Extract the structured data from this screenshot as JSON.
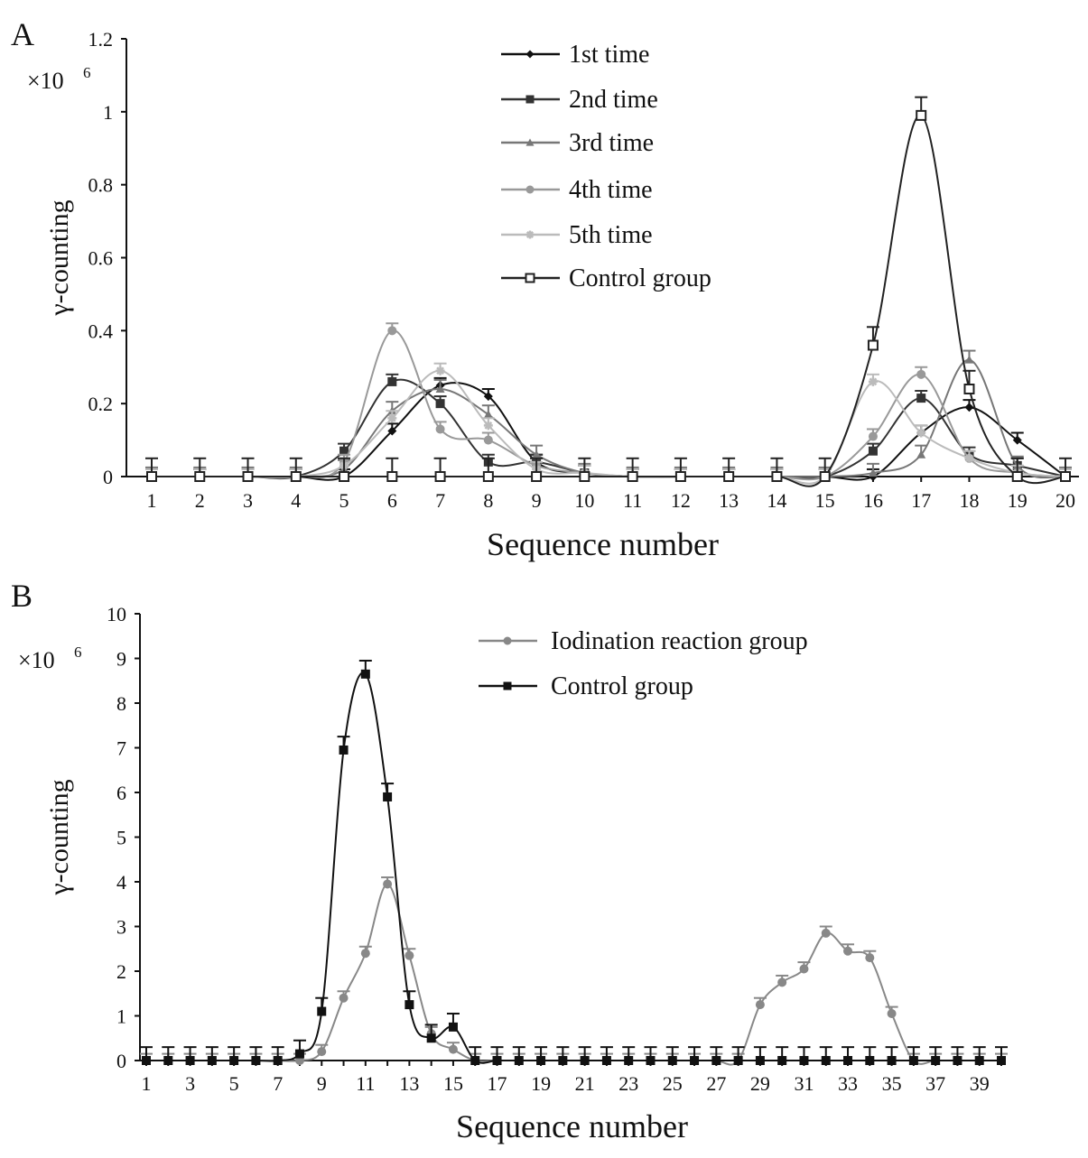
{
  "chart_data": [
    {
      "panel": "A",
      "type": "line",
      "multiplier_label": "×10",
      "multiplier_exp": "6",
      "xlabel": "Sequence number",
      "ylabel": "γ-counting",
      "ylim": [
        0,
        1.2
      ],
      "yticks": [
        0,
        0.2,
        0.4,
        0.6,
        0.8,
        1,
        1.2
      ],
      "ytick_labels": [
        "0",
        "0.2",
        "0.4",
        "0.6",
        "0.8",
        "1",
        "1.2"
      ],
      "x": [
        1,
        2,
        3,
        4,
        5,
        6,
        7,
        8,
        9,
        10,
        11,
        12,
        13,
        14,
        15,
        16,
        17,
        18,
        19,
        20
      ],
      "xtick_labels": [
        "1",
        "2",
        "3",
        "4",
        "5",
        "6",
        "7",
        "8",
        "9",
        "10",
        "11",
        "12",
        "13",
        "14",
        "15",
        "16",
        "17",
        "18",
        "19",
        "20"
      ],
      "legend_position": "top-center",
      "series": [
        {
          "name": "1st time",
          "marker": "diamond",
          "color": "#111111",
          "error": 0.02,
          "values": [
            0,
            0,
            0,
            0,
            0,
            0.125,
            0.25,
            0.22,
            0.04,
            0.01,
            0,
            0,
            0,
            0,
            0,
            0,
            0.12,
            0.19,
            0.1,
            0
          ]
        },
        {
          "name": "2nd time",
          "marker": "square",
          "color": "#333333",
          "error": 0.02,
          "values": [
            0,
            0,
            0,
            0,
            0.07,
            0.26,
            0.2,
            0.04,
            0.04,
            0.01,
            0,
            0,
            0,
            0,
            0,
            0.07,
            0.215,
            0.06,
            0.03,
            0
          ]
        },
        {
          "name": "3rd time",
          "marker": "triangle",
          "color": "#777777",
          "error": 0.025,
          "values": [
            0,
            0,
            0,
            0,
            0.02,
            0.18,
            0.24,
            0.17,
            0.06,
            0.01,
            0,
            0,
            0,
            0,
            0,
            0.01,
            0.06,
            0.32,
            0.03,
            0
          ]
        },
        {
          "name": "4th time",
          "marker": "circle",
          "color": "#999999",
          "error": 0.02,
          "values": [
            0,
            0,
            0,
            0,
            0.04,
            0.4,
            0.13,
            0.1,
            0.03,
            0.01,
            0,
            0,
            0,
            0,
            0,
            0.11,
            0.28,
            0.05,
            0.01,
            0
          ]
        },
        {
          "name": "5th time",
          "marker": "star",
          "color": "#bbbbbb",
          "error": 0.02,
          "values": [
            0,
            0,
            0,
            0,
            0.03,
            0.16,
            0.29,
            0.14,
            0.02,
            0.01,
            0,
            0,
            0,
            0,
            0,
            0.26,
            0.12,
            0.05,
            0.01,
            0
          ]
        },
        {
          "name": "Control group",
          "marker": "open-square",
          "color": "#222222",
          "error": 0.05,
          "values": [
            0,
            0,
            0,
            0,
            0,
            0,
            0,
            0,
            0,
            0,
            0,
            0,
            0,
            0,
            0,
            0.36,
            0.99,
            0.24,
            0,
            0
          ]
        }
      ]
    },
    {
      "panel": "B",
      "type": "line",
      "multiplier_label": "×10",
      "multiplier_exp": "6",
      "xlabel": "Sequence number",
      "ylabel": "γ-counting",
      "ylim": [
        0,
        10
      ],
      "yticks": [
        0,
        1,
        2,
        3,
        4,
        5,
        6,
        7,
        8,
        9,
        10
      ],
      "ytick_labels": [
        "0",
        "1",
        "2",
        "3",
        "4",
        "5",
        "6",
        "7",
        "8",
        "9",
        "10"
      ],
      "x": [
        1,
        2,
        3,
        4,
        5,
        6,
        7,
        8,
        9,
        10,
        11,
        12,
        13,
        14,
        15,
        16,
        17,
        18,
        19,
        20,
        21,
        22,
        23,
        24,
        25,
        26,
        27,
        28,
        29,
        30,
        31,
        32,
        33,
        34,
        35,
        36,
        37,
        38,
        39,
        40
      ],
      "xtick_labels": [
        "1",
        "3",
        "5",
        "7",
        "9",
        "11",
        "13",
        "15",
        "17",
        "19",
        "21",
        "23",
        "25",
        "27",
        "29",
        "31",
        "33",
        "35",
        "37",
        "39"
      ],
      "legend_position": "top-right",
      "series": [
        {
          "name": "Iodination reaction group",
          "marker": "circle",
          "color": "#888888",
          "error": 0.15,
          "values": [
            0,
            0,
            0,
            0,
            0,
            0,
            0,
            0,
            0.2,
            1.4,
            2.4,
            3.95,
            2.35,
            0.6,
            0.25,
            0,
            0,
            0,
            0,
            0,
            0,
            0,
            0,
            0,
            0,
            0,
            0,
            0,
            1.25,
            1.75,
            2.05,
            2.85,
            2.45,
            2.3,
            1.05,
            0,
            0,
            0,
            0,
            0
          ]
        },
        {
          "name": "Control group",
          "marker": "square",
          "color": "#111111",
          "error": 0.3,
          "values": [
            0,
            0,
            0,
            0,
            0,
            0,
            0,
            0.15,
            1.1,
            6.95,
            8.65,
            5.9,
            1.25,
            0.5,
            0.75,
            0,
            0,
            0,
            0,
            0,
            0,
            0,
            0,
            0,
            0,
            0,
            0,
            0,
            0,
            0,
            0,
            0,
            0,
            0,
            0,
            0,
            0,
            0,
            0,
            0
          ]
        }
      ]
    }
  ]
}
